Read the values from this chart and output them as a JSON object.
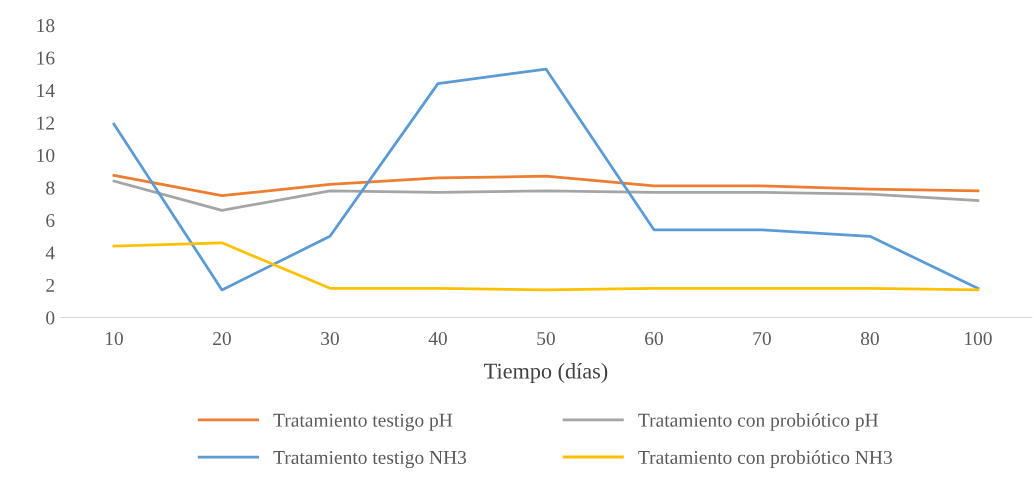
{
  "chart_data": {
    "type": "line",
    "xlabel": "Tiempo (días)",
    "categories": [
      "10",
      "20",
      "30",
      "40",
      "50",
      "60",
      "70",
      "80",
      "100"
    ],
    "series": [
      {
        "name": "Tratamiento testigo pH",
        "color": "#ed7d31",
        "values": [
          8.75,
          7.5,
          8.2,
          8.6,
          8.7,
          8.1,
          8.1,
          7.9,
          7.8
        ]
      },
      {
        "name": "Tratamiento con probiótico pH",
        "color": "#a5a5a5",
        "values": [
          8.4,
          6.6,
          7.8,
          7.7,
          7.8,
          7.7,
          7.7,
          7.6,
          7.2
        ]
      },
      {
        "name": "Tratamiento testigo NH3",
        "color": "#5b9bd5",
        "values": [
          11.9,
          1.7,
          5.0,
          14.4,
          15.3,
          5.4,
          5.4,
          5.0,
          1.8
        ]
      },
      {
        "name": "Tratamiento con probiótico NH3",
        "color": "#ffc000",
        "values": [
          4.4,
          4.6,
          1.8,
          1.8,
          1.7,
          1.8,
          1.8,
          1.8,
          1.7
        ]
      }
    ],
    "ylim": [
      0,
      18
    ],
    "yticks": [
      0,
      2,
      4,
      6,
      8,
      10,
      12,
      14,
      16,
      18
    ],
    "grid": false,
    "legend": "bottom",
    "marker": "none",
    "line_style": "solid"
  }
}
